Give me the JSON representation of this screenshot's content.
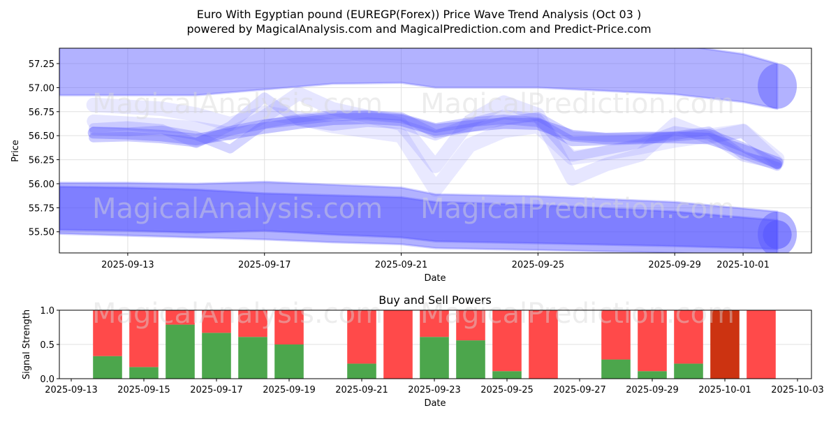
{
  "title_line1": "Euro With Egyptian pound (EUREGP(Forex)) Price Wave Trend Analysis (Oct 03 )",
  "title_line2": "powered by MagicalAnalysis.com and MagicalPrediction.com and Predict-Price.com",
  "watermarks": [
    "MagicalAnalysis.com",
    "MagicalPrediction.com"
  ],
  "chart_data": [
    {
      "type": "area",
      "title": "Euro With Egyptian pound (EUREGP(Forex)) Price Wave Trend Analysis (Oct 03 )",
      "xlabel": "Date",
      "ylabel": "Price",
      "ylim": [
        55.28,
        57.41
      ],
      "xlim": [
        "2025-09-11",
        "2025-10-03"
      ],
      "grid": true,
      "yticks": [
        "55.50",
        "55.75",
        "56.00",
        "56.25",
        "56.50",
        "56.75",
        "57.00",
        "57.25"
      ],
      "ytick_values": [
        55.5,
        55.75,
        56.0,
        56.25,
        56.5,
        56.75,
        57.0,
        57.25
      ],
      "xticks": [
        "2025-09-13",
        "2025-09-17",
        "2025-09-21",
        "2025-09-25",
        "2025-09-29",
        "2025-10-01"
      ],
      "color": "#5555ff",
      "bands": [
        {
          "name": "upper-band",
          "x": [
            "2025-09-11",
            "2025-09-15",
            "2025-09-17",
            "2025-09-19",
            "2025-09-21",
            "2025-09-22",
            "2025-09-25",
            "2025-09-29",
            "2025-10-01",
            "2025-10-02"
          ],
          "upper": [
            57.45,
            57.45,
            57.45,
            57.45,
            57.45,
            57.45,
            57.45,
            57.45,
            57.35,
            57.25
          ],
          "lower": [
            56.92,
            56.92,
            56.98,
            57.04,
            57.05,
            57.0,
            57.0,
            56.93,
            56.85,
            56.78
          ],
          "opacity": 0.45
        },
        {
          "name": "lower-band-outer",
          "x": [
            "2025-09-11",
            "2025-09-13",
            "2025-09-15",
            "2025-09-17",
            "2025-09-19",
            "2025-09-21",
            "2025-09-22",
            "2025-09-25",
            "2025-09-29",
            "2025-10-02"
          ],
          "upper": [
            56.01,
            56.01,
            56.0,
            56.02,
            55.99,
            55.96,
            55.89,
            55.87,
            55.81,
            55.71
          ],
          "lower": [
            55.48,
            55.46,
            55.44,
            55.42,
            55.39,
            55.37,
            55.33,
            55.31,
            55.28,
            55.24
          ],
          "opacity": 0.45
        },
        {
          "name": "lower-band-inner",
          "x": [
            "2025-09-11",
            "2025-09-13",
            "2025-09-15",
            "2025-09-17",
            "2025-09-19",
            "2025-09-21",
            "2025-09-22",
            "2025-09-25",
            "2025-09-29",
            "2025-10-02"
          ],
          "upper": [
            55.97,
            55.96,
            55.94,
            55.9,
            55.88,
            55.86,
            55.81,
            55.78,
            55.71,
            55.62
          ],
          "lower": [
            55.52,
            55.51,
            55.49,
            55.51,
            55.47,
            55.44,
            55.4,
            55.38,
            55.35,
            55.32
          ],
          "opacity": 0.55
        }
      ],
      "wave_series": [
        {
          "name": "wave-1",
          "x": [
            "2025-09-12",
            "2025-09-13",
            "2025-09-14",
            "2025-09-15",
            "2025-09-16",
            "2025-09-17",
            "2025-09-18",
            "2025-09-19",
            "2025-09-20",
            "2025-09-21",
            "2025-09-22",
            "2025-09-23",
            "2025-09-24",
            "2025-09-25",
            "2025-09-26",
            "2025-09-27",
            "2025-09-28",
            "2025-09-29",
            "2025-09-30",
            "2025-10-01",
            "2025-10-02"
          ],
          "y": [
            56.53,
            56.52,
            56.5,
            56.46,
            56.52,
            56.58,
            56.63,
            56.67,
            56.68,
            56.66,
            56.56,
            56.6,
            56.63,
            56.62,
            56.5,
            56.47,
            56.48,
            56.48,
            56.47,
            56.35,
            56.22
          ],
          "width": 0.12,
          "opacity": 0.35
        },
        {
          "name": "wave-2",
          "x": [
            "2025-09-12",
            "2025-09-13",
            "2025-09-14",
            "2025-09-15",
            "2025-09-16",
            "2025-09-17",
            "2025-09-18",
            "2025-09-19",
            "2025-09-20",
            "2025-09-21",
            "2025-09-22",
            "2025-09-23",
            "2025-09-24",
            "2025-09-25",
            "2025-09-26",
            "2025-09-27",
            "2025-09-28",
            "2025-09-29",
            "2025-09-30",
            "2025-10-01",
            "2025-10-02"
          ],
          "y": [
            56.48,
            56.49,
            56.47,
            56.43,
            56.55,
            56.62,
            56.66,
            56.7,
            56.71,
            56.68,
            56.58,
            56.64,
            56.67,
            56.64,
            56.44,
            56.45,
            56.46,
            56.49,
            56.52,
            56.38,
            56.2
          ],
          "width": 0.1,
          "opacity": 0.3
        },
        {
          "name": "wave-3",
          "x": [
            "2025-09-12",
            "2025-09-13",
            "2025-09-14",
            "2025-09-15",
            "2025-09-16",
            "2025-09-17",
            "2025-09-18",
            "2025-09-19",
            "2025-09-20",
            "2025-09-21",
            "2025-09-22",
            "2025-09-23",
            "2025-09-24",
            "2025-09-25",
            "2025-09-26",
            "2025-09-27",
            "2025-09-28",
            "2025-09-29",
            "2025-09-30",
            "2025-10-01",
            "2025-10-02"
          ],
          "y": [
            56.55,
            56.54,
            56.56,
            56.5,
            56.36,
            56.62,
            56.68,
            56.72,
            56.72,
            56.7,
            56.52,
            56.58,
            56.65,
            56.7,
            56.5,
            56.48,
            56.48,
            56.5,
            56.55,
            56.3,
            56.18
          ],
          "width": 0.09,
          "opacity": 0.25
        },
        {
          "name": "wave-4",
          "x": [
            "2025-09-12",
            "2025-09-13",
            "2025-09-14",
            "2025-09-15",
            "2025-09-16",
            "2025-09-17",
            "2025-09-18",
            "2025-09-19",
            "2025-09-20",
            "2025-09-21",
            "2025-09-22",
            "2025-09-23",
            "2025-09-24",
            "2025-09-25",
            "2025-09-26",
            "2025-09-27",
            "2025-09-28",
            "2025-09-29",
            "2025-09-30",
            "2025-10-01",
            "2025-10-02"
          ],
          "y": [
            56.58,
            56.6,
            56.57,
            56.42,
            56.6,
            56.9,
            56.65,
            56.6,
            56.64,
            56.62,
            56.5,
            56.63,
            56.72,
            56.68,
            56.28,
            56.35,
            56.42,
            56.55,
            56.5,
            56.28,
            56.2
          ],
          "width": 0.1,
          "opacity": 0.2
        },
        {
          "name": "wave-5",
          "x": [
            "2025-09-12",
            "2025-09-13",
            "2025-09-14",
            "2025-09-15",
            "2025-09-16",
            "2025-09-17",
            "2025-09-18",
            "2025-09-19",
            "2025-09-20",
            "2025-09-21",
            "2025-09-22",
            "2025-09-23",
            "2025-09-24",
            "2025-09-25",
            "2025-09-26",
            "2025-09-27",
            "2025-09-28",
            "2025-09-29",
            "2025-09-30",
            "2025-10-01",
            "2025-10-02"
          ],
          "y": [
            56.65,
            56.63,
            56.61,
            56.58,
            56.52,
            56.7,
            56.94,
            56.78,
            56.7,
            56.62,
            56.18,
            56.65,
            56.85,
            56.72,
            56.05,
            56.2,
            56.3,
            56.62,
            56.48,
            56.55,
            56.22
          ],
          "width": 0.14,
          "opacity": 0.15
        },
        {
          "name": "wave-6",
          "x": [
            "2025-09-12",
            "2025-09-13",
            "2025-09-14",
            "2025-09-15",
            "2025-09-16",
            "2025-09-17",
            "2025-09-18",
            "2025-09-19",
            "2025-09-20",
            "2025-09-21",
            "2025-09-22",
            "2025-09-23",
            "2025-09-24",
            "2025-09-25",
            "2025-09-26",
            "2025-09-27",
            "2025-09-28",
            "2025-09-29",
            "2025-09-30",
            "2025-10-01",
            "2025-10-02"
          ],
          "y": [
            56.82,
            56.8,
            56.78,
            56.72,
            56.62,
            56.74,
            56.68,
            56.6,
            56.55,
            56.5,
            55.94,
            56.4,
            56.55,
            56.6,
            56.27,
            56.32,
            56.38,
            56.45,
            56.5,
            56.55,
            56.26
          ],
          "width": 0.15,
          "opacity": 0.13
        }
      ]
    },
    {
      "type": "bar",
      "title": "Buy and Sell Powers",
      "xlabel": "Date",
      "ylabel": "Signal Strength",
      "ylim": [
        0.0,
        1.0
      ],
      "yticks": [
        "0.0",
        "0.5",
        "1.0"
      ],
      "ytick_values": [
        0.0,
        0.5,
        1.0
      ],
      "xticks": [
        "2025-09-13",
        "2025-09-15",
        "2025-09-17",
        "2025-09-19",
        "2025-09-21",
        "2025-09-23",
        "2025-09-25",
        "2025-09-27",
        "2025-09-29",
        "2025-10-01",
        "2025-10-03"
      ],
      "grid": true,
      "colors": {
        "buy": "#4ca64c",
        "sell": "#ff4a4a",
        "sell_strong": "#cc3311"
      },
      "categories": [
        "2025-09-14",
        "2025-09-15",
        "2025-09-16",
        "2025-09-17",
        "2025-09-18",
        "2025-09-19",
        "2025-09-21",
        "2025-09-22",
        "2025-09-23",
        "2025-09-24",
        "2025-09-25",
        "2025-09-26",
        "2025-09-28",
        "2025-09-29",
        "2025-09-30",
        "2025-10-01",
        "2025-10-02"
      ],
      "series": [
        {
          "name": "Buy",
          "values": [
            0.33,
            0.17,
            0.79,
            0.67,
            0.61,
            0.5,
            0.22,
            0.0,
            0.61,
            0.56,
            0.11,
            0.0,
            0.28,
            0.11,
            0.22,
            0.0,
            0.0
          ]
        },
        {
          "name": "Sell",
          "values": [
            0.67,
            0.83,
            0.21,
            0.33,
            0.39,
            0.5,
            0.78,
            1.0,
            0.39,
            0.44,
            0.89,
            1.0,
            0.72,
            0.89,
            0.78,
            1.0,
            1.0
          ]
        }
      ],
      "strong_sell": [
        false,
        false,
        false,
        false,
        false,
        false,
        false,
        false,
        false,
        false,
        false,
        false,
        false,
        false,
        false,
        true,
        false
      ]
    }
  ]
}
